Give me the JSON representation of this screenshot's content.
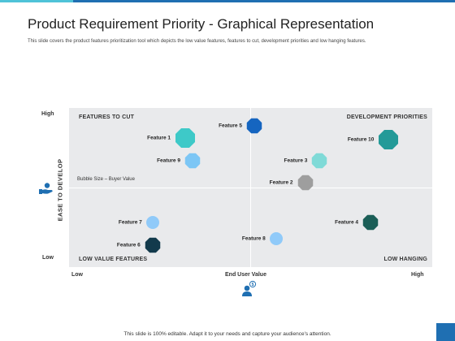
{
  "title": "Product Requirement Priority - Graphical Representation",
  "subtitle": "This slide covers the product features prioritization tool which depicts the low value features, features to cut, development priorities and low hanging features.",
  "quadrants": {
    "top_left": "FEATURES TO CUT",
    "top_right": "DEVELOPMENT PRIORITIES",
    "bottom_left": "LOW VALUE FEATURES",
    "bottom_right": "LOW HANGING"
  },
  "bubble_note": "Bubble Size – Buyer Value",
  "y_axis": {
    "title": "EASE TO DEVELOP",
    "high": "High",
    "low": "Low"
  },
  "x_axis": {
    "title": "End User Value",
    "low": "Low",
    "high": "High"
  },
  "footer": "This slide is 100% editable. Adapt it to your needs and capture your audience's attention.",
  "colors": {
    "top_bar": "#1f6fb2",
    "top_bar_accent": "#4fc3d8",
    "plot_background": "#e9eaec"
  },
  "icons": {
    "y_axis": "hand-coin-icon",
    "x_axis": "user-dollar-icon"
  },
  "chart_data": {
    "type": "scatter",
    "xlabel": "End User Value",
    "ylabel": "EASE TO DEVELOP",
    "note": "Bubble Size – Buyer Value",
    "points": [
      {
        "label": "Feature 1",
        "x": 0.32,
        "y": 0.81,
        "size": "large",
        "shape": "octagon",
        "color": "#3ec9c8",
        "label_side": "left"
      },
      {
        "label": "Feature 9",
        "x": 0.34,
        "y": 0.67,
        "size": "medium",
        "shape": "octagon",
        "color": "#7cc6f5",
        "label_side": "left"
      },
      {
        "label": "Feature 5",
        "x": 0.51,
        "y": 0.89,
        "size": "medium",
        "shape": "octagon",
        "color": "#1565c0",
        "label_side": "left"
      },
      {
        "label": "Feature 3",
        "x": 0.69,
        "y": 0.67,
        "size": "medium",
        "shape": "octagon",
        "color": "#7fdad7",
        "label_side": "left"
      },
      {
        "label": "Feature 2",
        "x": 0.65,
        "y": 0.53,
        "size": "medium",
        "shape": "octagon",
        "color": "#9e9e9e",
        "label_side": "left"
      },
      {
        "label": "Feature 10",
        "x": 0.88,
        "y": 0.8,
        "size": "large",
        "shape": "octagon",
        "color": "#239a98",
        "label_side": "left"
      },
      {
        "label": "Feature 7",
        "x": 0.23,
        "y": 0.28,
        "size": "small",
        "shape": "circle",
        "color": "#90caf9",
        "label_side": "left"
      },
      {
        "label": "Feature 6",
        "x": 0.23,
        "y": 0.14,
        "size": "medium",
        "shape": "octagon",
        "color": "#123a4c",
        "label_side": "left"
      },
      {
        "label": "Feature 8",
        "x": 0.57,
        "y": 0.18,
        "size": "small",
        "shape": "circle",
        "color": "#90caf9",
        "label_side": "left"
      },
      {
        "label": "Feature 4",
        "x": 0.83,
        "y": 0.28,
        "size": "medium",
        "shape": "octagon",
        "color": "#1b5e57",
        "label_side": "left"
      }
    ]
  }
}
